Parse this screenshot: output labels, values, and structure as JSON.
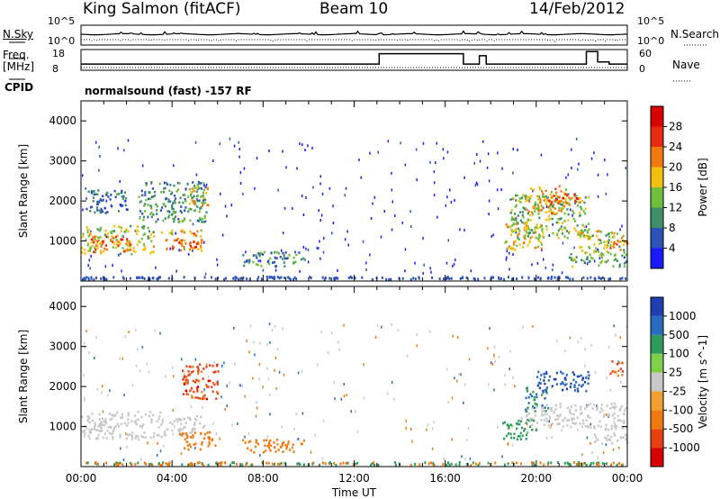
{
  "header": {
    "station": "King Salmon (fitACF)",
    "beam": "Beam 10",
    "date": "14/Feb/2012"
  },
  "strip_labels": {
    "nsky": "N.Sky",
    "nsearch": "N.Search",
    "freq": "Freq.",
    "freq_unit": "[MHz]",
    "nave": "Nave",
    "cpid": "CPID",
    "cpid_text": "normalsound (fast) -157 RF",
    "noise_ticks_left": [
      "10^5",
      "10^0"
    ],
    "noise_ticks_right": [
      "10^5",
      "10^0"
    ],
    "freq_ticks": [
      "18",
      "8"
    ],
    "nave_ticks": [
      "60",
      "0"
    ]
  },
  "chart_data": [
    {
      "type": "heatmap",
      "panel": "power",
      "ylabel": "Slant Range [km]",
      "yticks": [
        "1000",
        "2000",
        "3000",
        "4000"
      ],
      "colorbar_label": "Power [dB]",
      "colorbar_ticks": [
        "4",
        "8",
        "12",
        "16",
        "20",
        "24",
        "28"
      ],
      "colorbar_colors": [
        "#1a1aff",
        "#2d52b8",
        "#3d8f6a",
        "#6fbf3a",
        "#f2c010",
        "#f07a10",
        "#e82a10",
        "#d80000"
      ],
      "blobs": [
        {
          "t": [
            0.0,
            3.2
          ],
          "r": [
            700,
            1400
          ],
          "level": 16
        },
        {
          "t": [
            0.4,
            2.2
          ],
          "r": [
            750,
            1150
          ],
          "level": 22
        },
        {
          "t": [
            3.5,
            5.3
          ],
          "r": [
            780,
            1300
          ],
          "level": 20
        },
        {
          "t": [
            4.2,
            5.1
          ],
          "r": [
            850,
            1050
          ],
          "level": 26
        },
        {
          "t": [
            2.5,
            5.5
          ],
          "r": [
            1500,
            2500
          ],
          "level": 10
        },
        {
          "t": [
            4.7,
            5.6
          ],
          "r": [
            1900,
            2400
          ],
          "level": 18
        },
        {
          "t": [
            0.2,
            2.0
          ],
          "r": [
            1700,
            2300
          ],
          "level": 8
        },
        {
          "t": [
            7.0,
            9.8
          ],
          "r": [
            380,
            750
          ],
          "level": 10
        },
        {
          "t": [
            18.6,
            20.2
          ],
          "r": [
            800,
            1500
          ],
          "level": 18
        },
        {
          "t": [
            18.8,
            22.3
          ],
          "r": [
            1100,
            2200
          ],
          "level": 14
        },
        {
          "t": [
            19.5,
            21.3
          ],
          "r": [
            1700,
            2400
          ],
          "level": 20
        },
        {
          "t": [
            20.5,
            22.0
          ],
          "r": [
            1900,
            2200
          ],
          "level": 24
        },
        {
          "t": [
            21.8,
            24.0
          ],
          "r": [
            700,
            1300
          ],
          "level": 16
        },
        {
          "t": [
            22.7,
            24.0
          ],
          "r": [
            850,
            1050
          ],
          "level": 22
        },
        {
          "t": [
            21.4,
            24.0
          ],
          "r": [
            380,
            700
          ],
          "level": 12
        }
      ]
    },
    {
      "type": "heatmap",
      "panel": "velocity",
      "ylabel": "Slant Range [km]",
      "yticks": [
        "1000",
        "2000",
        "3000",
        "4000"
      ],
      "colorbar_label": "Velocity [m s^-1]",
      "colorbar_ticks": [
        "1000",
        "500",
        "100",
        "25",
        "-25",
        "-100",
        "-500",
        "-1000"
      ],
      "colorbar_colors": [
        "#1f3fb0",
        "#2a6ac0",
        "#2f9a5a",
        "#7ecf4a",
        "#c8c8c8",
        "#f0a030",
        "#f07a10",
        "#e84010",
        "#d80000"
      ],
      "blobs": [
        {
          "t": [
            0.0,
            3.6
          ],
          "r": [
            700,
            1400
          ],
          "level": 0
        },
        {
          "t": [
            3.6,
            5.4
          ],
          "r": [
            800,
            1300
          ],
          "level": 0
        },
        {
          "t": [
            4.4,
            6.0
          ],
          "r": [
            1700,
            2600
          ],
          "level": -600
        },
        {
          "t": [
            4.3,
            5.9
          ],
          "r": [
            450,
            900
          ],
          "level": -150
        },
        {
          "t": [
            7.0,
            9.8
          ],
          "r": [
            380,
            700
          ],
          "level": -300
        },
        {
          "t": [
            18.5,
            20.0
          ],
          "r": [
            700,
            1200
          ],
          "level": 80
        },
        {
          "t": [
            19.3,
            23.9
          ],
          "r": [
            1000,
            1600
          ],
          "level": 0
        },
        {
          "t": [
            20.0,
            22.3
          ],
          "r": [
            1900,
            2400
          ],
          "level": 700
        },
        {
          "t": [
            19.5,
            20.5
          ],
          "r": [
            1400,
            2000
          ],
          "level": 300
        },
        {
          "t": [
            22.5,
            24.0
          ],
          "r": [
            600,
            1000
          ],
          "level": 0
        },
        {
          "t": [
            23.2,
            23.8
          ],
          "r": [
            2300,
            2700
          ],
          "level": -500
        }
      ]
    }
  ],
  "xaxis": {
    "label": "Time UT",
    "ticks": [
      "00:00",
      "04:00",
      "08:00",
      "12:00",
      "16:00",
      "20:00",
      "00:00"
    ]
  },
  "freq_steps": [
    {
      "t": [
        0,
        13.1
      ],
      "mhz": 11
    },
    {
      "t": [
        13.1,
        16.8
      ],
      "mhz": 16
    },
    {
      "t": [
        16.8,
        17.5
      ],
      "mhz": 11
    },
    {
      "t": [
        17.5,
        17.8
      ],
      "mhz": 15
    },
    {
      "t": [
        17.8,
        22.2
      ],
      "mhz": 11
    },
    {
      "t": [
        22.2,
        22.7
      ],
      "mhz": 17
    },
    {
      "t": [
        22.7,
        23.2
      ],
      "mhz": 12
    },
    {
      "t": [
        23.2,
        24.0
      ],
      "mhz": 11
    }
  ]
}
